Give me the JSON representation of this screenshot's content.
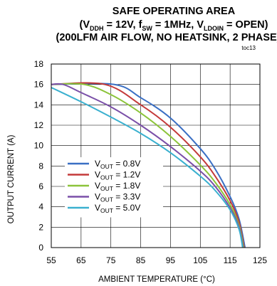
{
  "chart_data": {
    "type": "line",
    "title_line1": "SAFE OPERATING AREA",
    "title_line2": {
      "open": "(V",
      "vddh_sub": "DDH",
      "vddh_text": " = 12V, f",
      "fsw_sub": "SW",
      "fsw_text": " = 1MHz, V",
      "vldoin_sub": "LDOIN",
      "close": " = OPEN)"
    },
    "title_line3": "(200LFM AIR FLOW, NO HEATSINK, 2 PHASE)",
    "tag": "toc13",
    "xlabel": "AMBIENT TEMPERATURE (°C)",
    "ylabel": "OUTPUT CURRENT (A)",
    "xlim": [
      55,
      125
    ],
    "ylim": [
      0,
      18
    ],
    "xticks": [
      "55",
      "65",
      "75",
      "85",
      "95",
      "105",
      "115",
      "125"
    ],
    "yticks": [
      "0",
      "2",
      "4",
      "6",
      "8",
      "10",
      "12",
      "14",
      "16",
      "18"
    ],
    "grid": true,
    "legend_location": "lower-left",
    "series": [
      {
        "name_main": "V",
        "name_sub": "OUT",
        "name_value": " = 0.8V",
        "color": "#3a6fc4",
        "points": [
          [
            55,
            16
          ],
          [
            76,
            16
          ],
          [
            85,
            14.7
          ],
          [
            95,
            12.7
          ],
          [
            105,
            9.7
          ],
          [
            110,
            7.7
          ],
          [
            115,
            5.0
          ],
          [
            118,
            2.8
          ],
          [
            120,
            0
          ]
        ]
      },
      {
        "name_main": "V",
        "name_sub": "OUT",
        "name_value": " = 1.2V",
        "color": "#c43a3a",
        "points": [
          [
            55,
            16
          ],
          [
            73,
            16
          ],
          [
            85,
            14.0
          ],
          [
            95,
            11.8
          ],
          [
            105,
            8.9
          ],
          [
            110,
            7.0
          ],
          [
            115,
            4.6
          ],
          [
            118,
            2.5
          ],
          [
            119.7,
            0
          ]
        ]
      },
      {
        "name_main": "V",
        "name_sub": "OUT",
        "name_value": " = 1.8V",
        "color": "#8cc43a",
        "points": [
          [
            55,
            16
          ],
          [
            66,
            16
          ],
          [
            75,
            15.0
          ],
          [
            85,
            13.2
          ],
          [
            95,
            10.9
          ],
          [
            105,
            8.1
          ],
          [
            110,
            6.4
          ],
          [
            115,
            4.2
          ],
          [
            118,
            2.2
          ],
          [
            119.5,
            0
          ]
        ]
      },
      {
        "name_main": "V",
        "name_sub": "OUT",
        "name_value": " = 3.3V",
        "color": "#7a4fa8",
        "points": [
          [
            55,
            16
          ],
          [
            59,
            16
          ],
          [
            65,
            15.2
          ],
          [
            75,
            13.8
          ],
          [
            85,
            12.0
          ],
          [
            95,
            9.9
          ],
          [
            105,
            7.5
          ],
          [
            110,
            6.0
          ],
          [
            115,
            3.9
          ],
          [
            118,
            2.0
          ],
          [
            119.3,
            0
          ]
        ]
      },
      {
        "name_main": "V",
        "name_sub": "OUT",
        "name_value": " = 5.0V",
        "color": "#3ab0cf",
        "points": [
          [
            55,
            15.7
          ],
          [
            65,
            14.3
          ],
          [
            75,
            12.8
          ],
          [
            85,
            11.2
          ],
          [
            95,
            9.3
          ],
          [
            105,
            7.0
          ],
          [
            110,
            5.6
          ],
          [
            115,
            3.7
          ],
          [
            118,
            1.8
          ],
          [
            119.2,
            0
          ]
        ]
      }
    ]
  }
}
